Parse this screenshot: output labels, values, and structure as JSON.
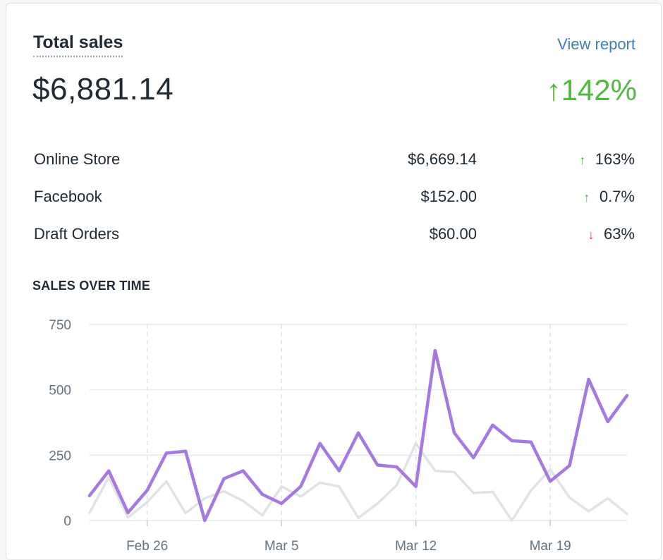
{
  "card": {
    "title": "Total sales",
    "view_report": "View report",
    "total": "$6,881.14",
    "change": "142%",
    "change_direction": "up"
  },
  "breakdown": [
    {
      "label": "Online Store",
      "amount": "$6,669.14",
      "change": "163%",
      "direction": "up"
    },
    {
      "label": "Facebook",
      "amount": "$152.00",
      "change": "0.7%",
      "direction": "up"
    },
    {
      "label": "Draft Orders",
      "amount": "$60.00",
      "change": "63%",
      "direction": "down"
    }
  ],
  "section_heading": "SALES OVER TIME",
  "colors": {
    "positive": "#50b83c",
    "negative": "#de3618",
    "current_series": "#a47ae2",
    "previous_series": "#dfe3e8",
    "link": "#3f7fb6"
  },
  "chart_data": {
    "type": "line",
    "title": "",
    "xlabel": "",
    "ylabel": "",
    "ylim": [
      0,
      750
    ],
    "yticks": [
      0,
      250,
      500,
      750
    ],
    "x_tick_labels": [
      {
        "label": "Feb 26",
        "index": 3
      },
      {
        "label": "Mar 5",
        "index": 10
      },
      {
        "label": "Mar 12",
        "index": 17
      },
      {
        "label": "Mar 19",
        "index": 24
      }
    ],
    "grid": true,
    "legend": "none",
    "series": [
      {
        "values": [
          95,
          190,
          30,
          115,
          258,
          265,
          0,
          160,
          190,
          100,
          65,
          130,
          295,
          190,
          335,
          212,
          205,
          130,
          650,
          335,
          240,
          365,
          305,
          300,
          150,
          210,
          540,
          378,
          478
        ]
      },
      {
        "values": [
          30,
          165,
          12,
          70,
          150,
          28,
          85,
          112,
          75,
          20,
          130,
          92,
          145,
          130,
          10,
          65,
          135,
          295,
          190,
          185,
          105,
          110,
          0,
          115,
          195,
          88,
          35,
          85,
          25
        ]
      }
    ]
  }
}
